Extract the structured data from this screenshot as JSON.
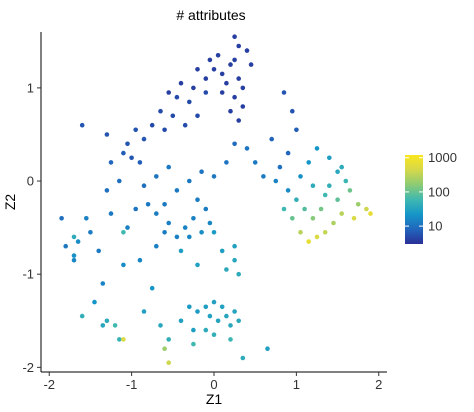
{
  "chart_data": {
    "type": "scatter",
    "title": "# attributes",
    "xlabel": "Z1",
    "ylabel": "Z2",
    "xlim": [
      -2.1,
      2.1
    ],
    "ylim": [
      -2.05,
      1.6
    ],
    "x_ticks": [
      -2,
      -1,
      0,
      1,
      2
    ],
    "y_ticks": [
      -2,
      -1,
      0,
      1
    ],
    "grid": false,
    "legend": {
      "placement": "right",
      "scale": "log",
      "range": [
        3,
        1200
      ],
      "ticks": [
        10,
        100,
        1000
      ],
      "tick_labels": [
        "10",
        "100",
        "1000"
      ],
      "colors": [
        "#2a2f96",
        "#2166bd",
        "#1596c8",
        "#3fb8b0",
        "#8ccb74",
        "#d6d84a",
        "#fae61c"
      ]
    },
    "points": [
      [
        -0.2,
        1.2,
        4
      ],
      [
        -0.1,
        1.1,
        4
      ],
      [
        0.0,
        1.2,
        4
      ],
      [
        0.1,
        1.15,
        4
      ],
      [
        0.15,
        1.05,
        4
      ],
      [
        0.2,
        1.25,
        4
      ],
      [
        0.25,
        1.3,
        4
      ],
      [
        0.3,
        1.1,
        4
      ],
      [
        0.35,
        1.0,
        4
      ],
      [
        0.05,
        1.35,
        4
      ],
      [
        -0.05,
        1.3,
        4
      ],
      [
        0.3,
        1.45,
        4
      ],
      [
        0.25,
        1.55,
        4
      ],
      [
        0.4,
        1.4,
        4
      ],
      [
        0.45,
        1.25,
        4
      ],
      [
        0.35,
        0.8,
        4
      ],
      [
        0.3,
        0.65,
        4
      ],
      [
        0.25,
        0.9,
        4
      ],
      [
        0.2,
        0.75,
        4
      ],
      [
        0.1,
        0.95,
        4
      ],
      [
        -0.1,
        0.95,
        5
      ],
      [
        -0.25,
        1.0,
        4
      ],
      [
        -0.3,
        0.85,
        5
      ],
      [
        -0.4,
        1.05,
        4
      ],
      [
        -0.45,
        0.9,
        5
      ],
      [
        -0.55,
        0.95,
        4
      ],
      [
        -0.65,
        0.75,
        5
      ],
      [
        -0.5,
        0.7,
        5
      ],
      [
        -0.35,
        0.6,
        5
      ],
      [
        -0.2,
        0.7,
        5
      ],
      [
        -0.6,
        0.55,
        5
      ],
      [
        -0.75,
        0.6,
        5
      ],
      [
        -0.85,
        0.45,
        6
      ],
      [
        -0.95,
        0.55,
        6
      ],
      [
        -1.05,
        0.4,
        6
      ],
      [
        -1.1,
        0.3,
        7
      ],
      [
        -1.0,
        0.25,
        6
      ],
      [
        -0.9,
        0.2,
        7
      ],
      [
        -1.3,
        0.5,
        6
      ],
      [
        -1.6,
        0.6,
        6
      ],
      [
        0.85,
        0.95,
        6
      ],
      [
        0.95,
        0.75,
        6
      ],
      [
        1.0,
        0.55,
        7
      ],
      [
        0.9,
        0.3,
        8
      ],
      [
        0.7,
        0.45,
        8
      ],
      [
        0.8,
        0.15,
        10
      ],
      [
        -1.25,
        0.2,
        8
      ],
      [
        -1.15,
        0.0,
        10
      ],
      [
        -0.85,
        -0.05,
        10
      ],
      [
        -0.7,
        0.05,
        11
      ],
      [
        -0.55,
        0.15,
        12
      ],
      [
        -0.45,
        -0.1,
        12
      ],
      [
        -0.3,
        0.0,
        12
      ],
      [
        -0.15,
        0.1,
        11
      ],
      [
        0.0,
        0.05,
        12
      ],
      [
        0.15,
        0.2,
        11
      ],
      [
        0.25,
        0.4,
        9
      ],
      [
        0.4,
        0.35,
        11
      ],
      [
        0.5,
        0.2,
        12
      ],
      [
        0.6,
        0.05,
        13
      ],
      [
        0.75,
        0.0,
        15
      ],
      [
        0.9,
        -0.1,
        18
      ],
      [
        1.05,
        0.05,
        20
      ],
      [
        1.15,
        0.2,
        22
      ],
      [
        1.25,
        0.35,
        22
      ],
      [
        1.4,
        0.25,
        28
      ],
      [
        1.5,
        0.1,
        35
      ],
      [
        1.6,
        0.0,
        55
      ],
      [
        1.2,
        -0.05,
        40
      ],
      [
        1.35,
        -0.15,
        60
      ],
      [
        1.5,
        -0.2,
        90
      ],
      [
        1.65,
        -0.1,
        110
      ],
      [
        1.75,
        -0.25,
        200
      ],
      [
        1.85,
        -0.3,
        400
      ],
      [
        1.9,
        -0.35,
        700
      ],
      [
        1.7,
        -0.4,
        500
      ],
      [
        1.55,
        -0.35,
        300
      ],
      [
        1.45,
        -0.45,
        250
      ],
      [
        1.35,
        -0.55,
        350
      ],
      [
        1.25,
        -0.6,
        500
      ],
      [
        1.15,
        -0.65,
        700
      ],
      [
        1.05,
        -0.55,
        300
      ],
      [
        1.2,
        -0.4,
        150
      ],
      [
        1.3,
        -0.3,
        120
      ],
      [
        1.1,
        -0.3,
        80
      ],
      [
        1.0,
        -0.2,
        45
      ],
      [
        0.95,
        -0.4,
        100
      ],
      [
        0.85,
        -0.3,
        60
      ],
      [
        1.4,
        -0.05,
        45
      ],
      [
        1.55,
        0.15,
        40
      ],
      [
        -1.85,
        -0.4,
        10
      ],
      [
        -1.8,
        -0.7,
        12
      ],
      [
        -1.7,
        -0.85,
        16
      ],
      [
        -1.65,
        -0.65,
        18
      ],
      [
        -1.55,
        -0.4,
        14
      ],
      [
        -1.5,
        -0.55,
        13
      ],
      [
        -1.4,
        -0.75,
        12
      ],
      [
        -1.3,
        -0.1,
        10
      ],
      [
        -1.25,
        -0.35,
        12
      ],
      [
        -1.05,
        -0.5,
        14
      ],
      [
        -0.95,
        -0.3,
        11
      ],
      [
        -0.8,
        -0.25,
        12
      ],
      [
        -0.7,
        -0.35,
        13
      ],
      [
        -0.6,
        -0.55,
        13
      ],
      [
        -0.55,
        -0.45,
        14
      ],
      [
        -0.45,
        -0.6,
        14
      ],
      [
        -0.35,
        -0.5,
        15
      ],
      [
        -0.3,
        -0.6,
        16
      ],
      [
        -0.25,
        -0.4,
        14
      ],
      [
        -0.15,
        -0.55,
        18
      ],
      [
        -0.05,
        -0.45,
        16
      ],
      [
        -0.1,
        -0.3,
        13
      ],
      [
        -0.2,
        -0.2,
        13
      ],
      [
        -0.6,
        -0.25,
        12
      ],
      [
        -0.7,
        -0.7,
        14
      ],
      [
        -0.9,
        -0.85,
        16
      ],
      [
        -1.1,
        -0.9,
        18
      ],
      [
        -1.35,
        -1.1,
        15
      ],
      [
        -1.45,
        -1.3,
        22
      ],
      [
        -1.6,
        -1.45,
        45
      ],
      [
        -1.3,
        -1.5,
        40
      ],
      [
        -1.35,
        -1.55,
        35
      ],
      [
        -1.15,
        -1.7,
        50
      ],
      [
        -1.2,
        -1.55,
        60
      ],
      [
        -1.1,
        -1.7,
        500
      ],
      [
        -0.85,
        -1.4,
        30
      ],
      [
        -0.75,
        -1.15,
        22
      ],
      [
        -0.65,
        -1.55,
        35
      ],
      [
        -0.55,
        -1.7,
        45
      ],
      [
        -0.6,
        -1.8,
        200
      ],
      [
        -0.55,
        -1.95,
        400
      ],
      [
        -0.4,
        -1.5,
        30
      ],
      [
        -0.3,
        -1.35,
        25
      ],
      [
        -0.25,
        -1.6,
        28
      ],
      [
        -0.2,
        -1.4,
        26
      ],
      [
        -0.1,
        -1.35,
        28
      ],
      [
        -0.05,
        -1.45,
        30
      ],
      [
        0.0,
        -1.3,
        30
      ],
      [
        0.05,
        -1.5,
        32
      ],
      [
        0.1,
        -1.35,
        30
      ],
      [
        0.15,
        -1.45,
        34
      ],
      [
        0.2,
        -1.55,
        36
      ],
      [
        0.25,
        -1.4,
        32
      ],
      [
        0.3,
        -1.5,
        38
      ],
      [
        0.0,
        -1.65,
        45
      ],
      [
        -0.1,
        -1.6,
        40
      ],
      [
        -0.25,
        -1.75,
        60
      ],
      [
        0.2,
        -1.7,
        55
      ],
      [
        0.35,
        -1.9,
        40
      ],
      [
        0.65,
        -1.8,
        30
      ],
      [
        0.3,
        -1.0,
        40
      ],
      [
        0.25,
        -0.85,
        35
      ],
      [
        0.15,
        -0.95,
        38
      ],
      [
        0.25,
        -0.7,
        30
      ],
      [
        0.1,
        -0.75,
        28
      ],
      [
        0.0,
        -0.55,
        25
      ],
      [
        -0.2,
        -0.9,
        30
      ],
      [
        -0.4,
        -0.75,
        28
      ],
      [
        -1.7,
        -0.8,
        20
      ],
      [
        -1.1,
        -0.55,
        60
      ],
      [
        -1.7,
        -0.6,
        40
      ]
    ]
  }
}
